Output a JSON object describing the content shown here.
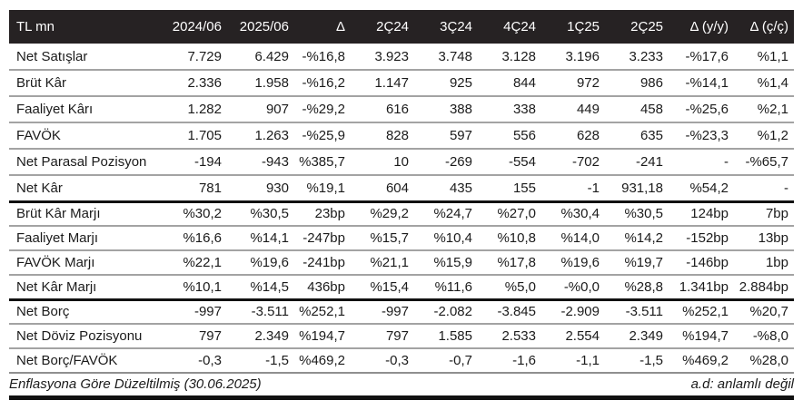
{
  "table": {
    "columns": [
      "TL mn",
      "2024/06",
      "2025/06",
      "Δ",
      "2Ç24",
      "3Ç24",
      "4Ç24",
      "1Ç25",
      "2Ç25",
      "Δ (y/y)",
      "Δ (ç/ç)"
    ],
    "sections": [
      {
        "name": "income-statement",
        "rows": [
          {
            "label": "Net Satışlar",
            "values": [
              "7.729",
              "6.429",
              "-%16,8",
              "3.923",
              "3.748",
              "3.128",
              "3.196",
              "3.233",
              "-%17,6",
              "%1,1"
            ]
          },
          {
            "label": "Brüt Kâr",
            "values": [
              "2.336",
              "1.958",
              "-%16,2",
              "1.147",
              "925",
              "844",
              "972",
              "986",
              "-%14,1",
              "%1,4"
            ]
          },
          {
            "label": "Faaliyet Kârı",
            "values": [
              "1.282",
              "907",
              "-%29,2",
              "616",
              "388",
              "338",
              "449",
              "458",
              "-%25,6",
              "%2,1"
            ]
          },
          {
            "label": "FAVÖK",
            "values": [
              "1.705",
              "1.263",
              "-%25,9",
              "828",
              "597",
              "556",
              "628",
              "635",
              "-%23,3",
              "%1,2"
            ]
          },
          {
            "label": "Net Parasal Pozisyon",
            "values": [
              "-194",
              "-943",
              "%385,7",
              "10",
              "-269",
              "-554",
              "-702",
              "-241",
              "-",
              "-%65,7"
            ]
          },
          {
            "label": "Net Kâr",
            "values": [
              "781",
              "930",
              "%19,1",
              "604",
              "435",
              "155",
              "-1",
              "931,18",
              "%54,2",
              "-"
            ]
          }
        ]
      },
      {
        "name": "margins",
        "rows": [
          {
            "label": "Brüt Kâr Marjı",
            "values": [
              "%30,2",
              "%30,5",
              "23bp",
              "%29,2",
              "%24,7",
              "%27,0",
              "%30,4",
              "%30,5",
              "124bp",
              "7bp"
            ]
          },
          {
            "label": "Faaliyet Marjı",
            "values": [
              "%16,6",
              "%14,1",
              "-247bp",
              "%15,7",
              "%10,4",
              "%10,8",
              "%14,0",
              "%14,2",
              "-152bp",
              "13bp"
            ]
          },
          {
            "label": "FAVÖK Marjı",
            "values": [
              "%22,1",
              "%19,6",
              "-241bp",
              "%21,1",
              "%15,9",
              "%17,8",
              "%19,6",
              "%19,7",
              "-146bp",
              "1bp"
            ]
          },
          {
            "label": "Net Kâr Marjı",
            "values": [
              "%10,1",
              "%14,5",
              "436bp",
              "%15,4",
              "%11,6",
              "%5,0",
              "-%0,0",
              "%28,8",
              "1.341bp",
              "2.884bp"
            ]
          }
        ]
      },
      {
        "name": "balance-items",
        "rows": [
          {
            "label": "Net Borç",
            "values": [
              "-997",
              "-3.511",
              "%252,1",
              "-997",
              "-2.082",
              "-3.845",
              "-2.909",
              "-3.511",
              "%252,1",
              "%20,7"
            ]
          },
          {
            "label": "Net Döviz Pozisyonu",
            "values": [
              "797",
              "2.349",
              "%194,7",
              "797",
              "1.585",
              "2.533",
              "2.554",
              "2.349",
              "%194,7",
              "-%8,0"
            ]
          },
          {
            "label": "Net Borç/FAVÖK",
            "values": [
              "-0,3",
              "-1,5",
              "%469,2",
              "-0,3",
              "-0,7",
              "-1,6",
              "-1,1",
              "-1,5",
              "%469,2",
              "%28,0"
            ]
          }
        ]
      }
    ]
  },
  "footnotes": {
    "left": "Enflasyona Göre Düzeltilmiş (30.06.2025)",
    "right": "a.d: anlamlı değil"
  },
  "colors": {
    "header_bg": "#262223",
    "header_text": "#ffffff",
    "body_text": "#1b1b1b",
    "row_divider": "#a3a3a3",
    "section_divider": "#111111",
    "end_divider": "#8f8f8f"
  }
}
